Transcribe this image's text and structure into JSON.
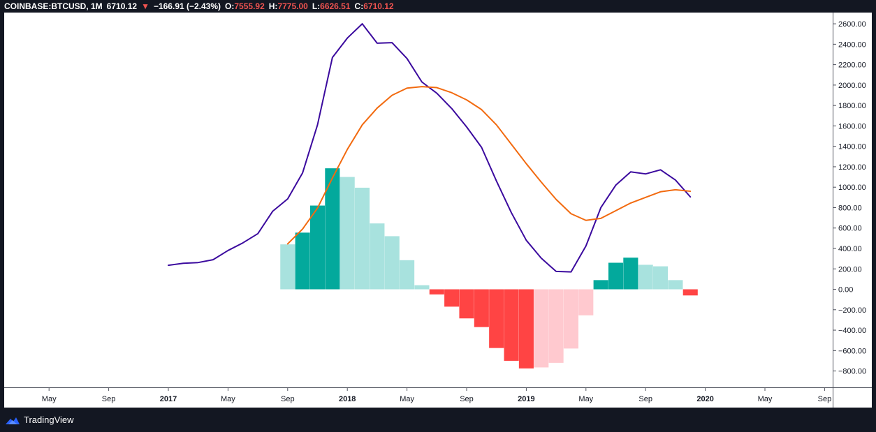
{
  "header": {
    "symbol": "COINBASE:BTCUSD, 1M",
    "last": "6710.12",
    "change_arrow": "▼",
    "change": "−166.91 (−2.43%)",
    "open_label": "O:",
    "open": "7555.92",
    "high_label": "H:",
    "high": "7775.00",
    "low_label": "L:",
    "low": "6626.51",
    "close_label": "C:",
    "close": "6710.12"
  },
  "footer": {
    "brand": "TradingView",
    "icon": "tradingview-cloud-icon"
  },
  "colors": {
    "background": "#131722",
    "panel": "#ffffff",
    "macd_line": "#3b0a9e",
    "signal_line": "#f26a0f",
    "hist_pos_strong": "#03a99c",
    "hist_pos_weak": "#a8e2de",
    "hist_neg_strong": "#ff4444",
    "hist_neg_weak": "#ffc9cf",
    "text_red": "#ef5350"
  },
  "chart_data": {
    "type": "line",
    "indicator": "MACD",
    "ylim": [
      -960,
      2710
    ],
    "y_ticks": [
      2600,
      2400,
      2200,
      2000,
      1800,
      1600,
      1400,
      1200,
      1000,
      800,
      600,
      400,
      200,
      0,
      -200,
      -400,
      -600,
      -800
    ],
    "y_tick_labels": [
      "2600.00",
      "2400.00",
      "2200.00",
      "2000.00",
      "1800.00",
      "1600.00",
      "1400.00",
      "1200.00",
      "1000.00",
      "800.00",
      "600.00",
      "400.00",
      "200.00",
      "0.00",
      "−200.00",
      "−400.00",
      "−600.00",
      "−800.00"
    ],
    "x_range": [
      "2016-01",
      "2020-09"
    ],
    "x_ticks": [
      {
        "date": "2016-05",
        "label": "May",
        "bold": false
      },
      {
        "date": "2016-09",
        "label": "Sep",
        "bold": false
      },
      {
        "date": "2017-01",
        "label": "2017",
        "bold": true
      },
      {
        "date": "2017-05",
        "label": "May",
        "bold": false
      },
      {
        "date": "2017-09",
        "label": "Sep",
        "bold": false
      },
      {
        "date": "2018-01",
        "label": "2018",
        "bold": true
      },
      {
        "date": "2018-05",
        "label": "May",
        "bold": false
      },
      {
        "date": "2018-09",
        "label": "Sep",
        "bold": false
      },
      {
        "date": "2019-01",
        "label": "2019",
        "bold": true
      },
      {
        "date": "2019-05",
        "label": "May",
        "bold": false
      },
      {
        "date": "2019-09",
        "label": "Sep",
        "bold": false
      },
      {
        "date": "2020-01",
        "label": "2020",
        "bold": true
      },
      {
        "date": "2020-05",
        "label": "May",
        "bold": false
      },
      {
        "date": "2020-09",
        "label": "Sep",
        "bold": false
      }
    ],
    "series": [
      {
        "id": "macd",
        "x": [
          "2017-01",
          "2017-02",
          "2017-03",
          "2017-04",
          "2017-05",
          "2017-06",
          "2017-07",
          "2017-08",
          "2017-09",
          "2017-10",
          "2017-11",
          "2017-12",
          "2018-01",
          "2018-02",
          "2018-03",
          "2018-04",
          "2018-05",
          "2018-06",
          "2018-07",
          "2018-08",
          "2018-09",
          "2018-10",
          "2018-11",
          "2018-12",
          "2019-01",
          "2019-02",
          "2019-03",
          "2019-04",
          "2019-05",
          "2019-06",
          "2019-07",
          "2019-08",
          "2019-09",
          "2019-10",
          "2019-11",
          "2019-12"
        ],
        "values": [
          235,
          255,
          262,
          290,
          380,
          455,
          545,
          765,
          885,
          1140,
          1610,
          2270,
          2460,
          2600,
          2410,
          2415,
          2260,
          2030,
          1920,
          1770,
          1590,
          1390,
          1060,
          750,
          480,
          305,
          175,
          170,
          425,
          800,
          1020,
          1150,
          1130,
          1170,
          1070,
          905
        ]
      },
      {
        "id": "signal",
        "x": [
          "2017-09",
          "2017-10",
          "2017-11",
          "2017-12",
          "2018-01",
          "2018-02",
          "2018-03",
          "2018-04",
          "2018-05",
          "2018-06",
          "2018-07",
          "2018-08",
          "2018-09",
          "2018-10",
          "2018-11",
          "2018-12",
          "2019-01",
          "2019-02",
          "2019-03",
          "2019-04",
          "2019-05",
          "2019-06",
          "2019-07",
          "2019-08",
          "2019-09",
          "2019-10",
          "2019-11",
          "2019-12"
        ],
        "values": [
          445,
          590,
          795,
          1090,
          1370,
          1610,
          1775,
          1900,
          1970,
          1985,
          1975,
          1925,
          1855,
          1760,
          1610,
          1420,
          1230,
          1050,
          880,
          740,
          675,
          695,
          770,
          845,
          900,
          955,
          975,
          960
        ]
      }
    ],
    "histogram": {
      "x": [
        "2017-09",
        "2017-10",
        "2017-11",
        "2017-12",
        "2018-01",
        "2018-02",
        "2018-03",
        "2018-04",
        "2018-05",
        "2018-06",
        "2018-07",
        "2018-08",
        "2018-09",
        "2018-10",
        "2018-11",
        "2018-12",
        "2019-01",
        "2019-02",
        "2019-03",
        "2019-04",
        "2019-05",
        "2019-06",
        "2019-07",
        "2019-08",
        "2019-09",
        "2019-10",
        "2019-11",
        "2019-12"
      ],
      "values": [
        440,
        555,
        820,
        1185,
        1100,
        995,
        645,
        520,
        285,
        40,
        -50,
        -170,
        -285,
        -370,
        -575,
        -700,
        -775,
        -765,
        -720,
        -580,
        -255,
        90,
        260,
        310,
        240,
        225,
        90,
        -60
      ],
      "colors": [
        "weak_pos",
        "strong_pos",
        "strong_pos",
        "strong_pos",
        "weak_pos",
        "weak_pos",
        "weak_pos",
        "weak_pos",
        "weak_pos",
        "weak_pos",
        "strong_neg",
        "strong_neg",
        "strong_neg",
        "strong_neg",
        "strong_neg",
        "strong_neg",
        "strong_neg",
        "weak_neg",
        "weak_neg",
        "weak_neg",
        "weak_neg",
        "strong_pos",
        "strong_pos",
        "strong_pos",
        "weak_pos",
        "weak_pos",
        "weak_pos",
        "strong_neg"
      ]
    }
  }
}
